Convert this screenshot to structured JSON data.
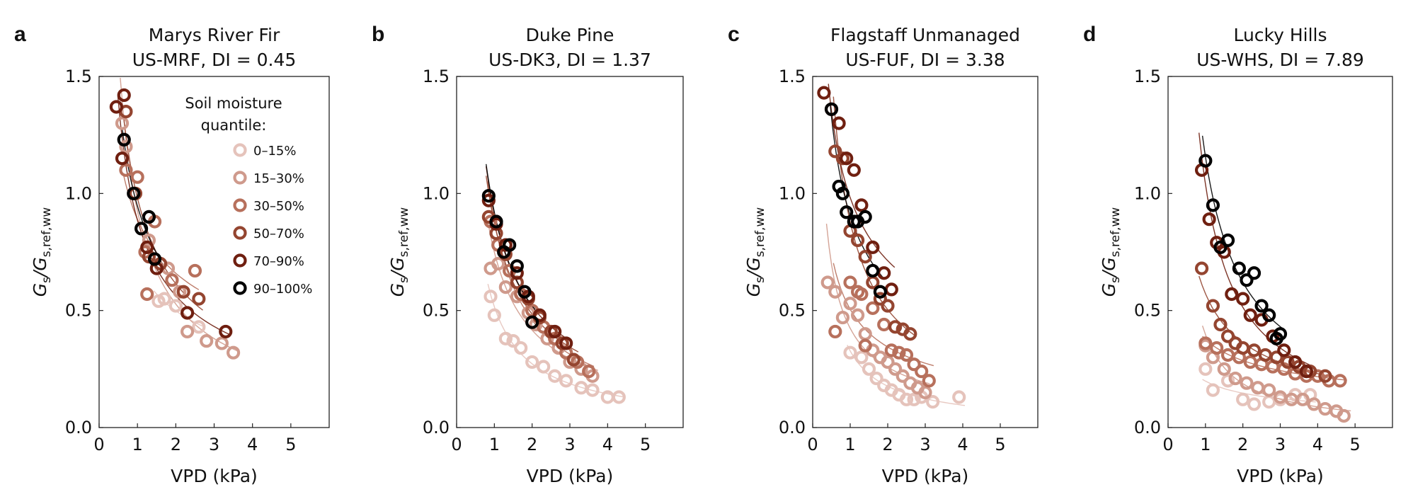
{
  "axis": {
    "xlabel": "VPD (kPa)",
    "ylabel_main": "G",
    "ylabel_main_sub": "s",
    "ylabel_denom": "/G",
    "ylabel_denom_sub": "s,ref,ww",
    "xlim": [
      0,
      6
    ],
    "ylim": [
      0,
      1.5
    ],
    "xticks": [
      "0",
      "1",
      "2",
      "3",
      "4",
      "5"
    ],
    "yticks": [
      "0.0",
      "0.5",
      "1.0",
      "1.5"
    ]
  },
  "legend": {
    "title_line1": "Soil moisture",
    "title_line2": "quantile:",
    "items": [
      "0–15%",
      "15–30%",
      "30–50%",
      "50–70%",
      "70–90%",
      "90–100%"
    ],
    "colors": [
      "#e5c3bb",
      "#cf9a8c",
      "#b7705c",
      "#944530",
      "#6f1f10",
      "#000000"
    ],
    "placement": "top-right of panel a"
  },
  "chart_data": [
    {
      "type": "scatter",
      "panel": "a",
      "title_line1": "Marys River Fir",
      "title_line2": "US-MRF, DI = 0.45",
      "xlabel": "VPD (kPa)",
      "ylim": [
        0,
        1.5
      ],
      "xlim": [
        0,
        6
      ],
      "series": [
        {
          "name": "0–15%",
          "x": [
            1.55,
            1.7,
            2.0,
            2.6
          ],
          "y": [
            0.54,
            0.55,
            0.52,
            0.43
          ]
        },
        {
          "name": "15–30%",
          "x": [
            0.6,
            0.7,
            1.3,
            1.8,
            2.1,
            2.3,
            2.8,
            3.2,
            3.5
          ],
          "y": [
            1.3,
            1.2,
            0.8,
            0.68,
            0.58,
            0.41,
            0.37,
            0.36,
            0.32
          ]
        },
        {
          "name": "30–50%",
          "x": [
            0.7,
            1.0,
            1.2,
            1.45,
            1.9,
            2.5,
            1.25
          ],
          "y": [
            1.1,
            1.07,
            0.75,
            0.88,
            0.63,
            0.67,
            0.57
          ]
        },
        {
          "name": "50–70%",
          "x": [
            0.7,
            0.95,
            1.3,
            1.6,
            2.2,
            2.6
          ],
          "y": [
            1.35,
            1.0,
            0.73,
            0.7,
            0.58,
            0.55
          ]
        },
        {
          "name": "70–90%",
          "x": [
            0.45,
            0.65,
            0.6,
            1.25,
            1.5,
            2.3,
            3.3
          ],
          "y": [
            1.37,
            1.42,
            1.15,
            0.77,
            0.68,
            0.49,
            0.41
          ]
        },
        {
          "name": "90–100%",
          "x": [
            0.65,
            0.9,
            1.1,
            1.3,
            1.45
          ],
          "y": [
            1.23,
            1.0,
            0.85,
            0.9,
            0.72
          ]
        }
      ]
    },
    {
      "type": "scatter",
      "panel": "b",
      "title_line1": "Duke Pine",
      "title_line2": "US-DK3, DI = 1.37",
      "xlabel": "VPD (kPa)",
      "ylim": [
        0,
        1.5
      ],
      "xlim": [
        0,
        6
      ],
      "series": [
        {
          "name": "0–15%",
          "x": [
            0.9,
            1.0,
            1.3,
            1.5,
            1.7,
            2.0,
            2.3,
            2.6,
            2.9,
            3.3,
            3.6,
            4.0,
            4.3
          ],
          "y": [
            0.56,
            0.48,
            0.38,
            0.37,
            0.34,
            0.28,
            0.26,
            0.22,
            0.2,
            0.17,
            0.16,
            0.13,
            0.13
          ]
        },
        {
          "name": "15–30%",
          "x": [
            0.9,
            1.1,
            1.3,
            1.6,
            1.9,
            2.1,
            2.4,
            2.7,
            3.0,
            3.3,
            3.6
          ],
          "y": [
            0.68,
            0.7,
            0.6,
            0.56,
            0.49,
            0.44,
            0.38,
            0.34,
            0.28,
            0.25,
            0.22
          ]
        },
        {
          "name": "30–50%",
          "x": [
            0.9,
            1.1,
            1.4,
            1.7,
            2.0,
            2.3,
            2.6,
            2.9,
            3.2,
            3.5
          ],
          "y": [
            0.88,
            0.78,
            0.67,
            0.57,
            0.5,
            0.43,
            0.38,
            0.32,
            0.28,
            0.24
          ]
        },
        {
          "name": "50–70%",
          "x": [
            0.85,
            1.05,
            1.3,
            1.6,
            1.9,
            2.2,
            2.5,
            2.8,
            3.1
          ],
          "y": [
            0.9,
            0.83,
            0.74,
            0.62,
            0.55,
            0.47,
            0.41,
            0.36,
            0.29
          ]
        },
        {
          "name": "70–90%",
          "x": [
            0.85,
            1.05,
            1.3,
            1.6,
            1.9,
            2.2,
            2.6,
            2.9
          ],
          "y": [
            0.97,
            0.87,
            0.78,
            0.66,
            0.56,
            0.48,
            0.41,
            0.36
          ]
        },
        {
          "name": "90–100%",
          "x": [
            0.85,
            1.05,
            1.25,
            1.4,
            1.6,
            1.8,
            2.0
          ],
          "y": [
            0.99,
            0.88,
            0.75,
            0.78,
            0.69,
            0.58,
            0.45
          ]
        }
      ]
    },
    {
      "type": "scatter",
      "panel": "c",
      "title_line1": "Flagstaff Unmanaged",
      "title_line2": "US-FUF, DI = 3.38",
      "xlabel": "VPD (kPa)",
      "ylim": [
        0,
        1.5
      ],
      "xlim": [
        0,
        6
      ],
      "series": [
        {
          "name": "0–15%",
          "x": [
            1.0,
            1.3,
            1.5,
            1.7,
            1.9,
            2.1,
            2.3,
            2.5,
            2.7,
            2.9,
            3.2,
            3.9
          ],
          "y": [
            0.32,
            0.3,
            0.25,
            0.21,
            0.18,
            0.16,
            0.14,
            0.12,
            0.12,
            0.13,
            0.11,
            0.13
          ]
        },
        {
          "name": "15–30%",
          "x": [
            0.4,
            0.6,
            0.8,
            1.0,
            1.2,
            1.4,
            1.6,
            1.8,
            2.0,
            2.2,
            2.4,
            2.6,
            2.8,
            3.0
          ],
          "y": [
            0.62,
            0.58,
            0.47,
            0.53,
            0.48,
            0.4,
            0.33,
            0.3,
            0.28,
            0.25,
            0.22,
            0.19,
            0.17,
            0.15
          ]
        },
        {
          "name": "30–50%",
          "x": [
            0.6,
            1.0,
            1.3,
            1.6,
            1.9,
            2.1,
            2.3,
            2.5,
            2.7,
            2.9,
            3.1,
            1.2,
            1.4
          ],
          "y": [
            0.41,
            0.62,
            0.57,
            0.51,
            0.44,
            0.33,
            0.32,
            0.31,
            0.27,
            0.24,
            0.2,
            0.58,
            0.35
          ]
        },
        {
          "name": "50–70%",
          "x": [
            0.6,
            0.8,
            1.0,
            1.2,
            1.4,
            1.6,
            1.8,
            2.0,
            2.2,
            2.4,
            2.6
          ],
          "y": [
            1.18,
            1.15,
            0.84,
            0.8,
            0.73,
            0.62,
            0.55,
            0.52,
            0.43,
            0.42,
            0.4
          ]
        },
        {
          "name": "70–90%",
          "x": [
            0.3,
            0.5,
            0.7,
            0.9,
            1.1,
            1.3,
            1.6,
            1.9,
            2.1
          ],
          "y": [
            1.43,
            1.36,
            1.3,
            1.15,
            1.1,
            0.95,
            0.77,
            0.66,
            0.59
          ]
        },
        {
          "name": "90–100%",
          "x": [
            0.5,
            0.7,
            0.9,
            1.1,
            1.2,
            1.4,
            1.6,
            1.8,
            0.8
          ],
          "y": [
            1.36,
            1.03,
            0.92,
            0.88,
            0.88,
            0.9,
            0.67,
            0.58,
            1.0
          ]
        }
      ]
    },
    {
      "type": "scatter",
      "panel": "d",
      "title_line1": "Lucky Hills",
      "title_line2": "US-WHS, DI = 7.89",
      "xlabel": "VPD (kPa)",
      "ylim": [
        0,
        1.5
      ],
      "xlim": [
        0,
        6
      ],
      "series": [
        {
          "name": "0–15%",
          "x": [
            1.0,
            1.2,
            1.6,
            2.0,
            2.3,
            2.7,
            3.0,
            3.4,
            3.8
          ],
          "y": [
            0.25,
            0.16,
            0.2,
            0.12,
            0.1,
            0.11,
            0.12,
            0.14,
            0.14
          ]
        },
        {
          "name": "15–30%",
          "x": [
            1.0,
            1.2,
            1.5,
            1.8,
            2.1,
            2.4,
            2.7,
            3.0,
            3.3,
            3.6,
            3.9,
            4.2,
            4.5,
            4.7
          ],
          "y": [
            0.35,
            0.3,
            0.25,
            0.21,
            0.19,
            0.17,
            0.16,
            0.13,
            0.12,
            0.12,
            0.1,
            0.08,
            0.07,
            0.05
          ]
        },
        {
          "name": "30–50%",
          "x": [
            1.0,
            1.3,
            1.6,
            1.9,
            2.2,
            2.5,
            2.8,
            3.1,
            3.4,
            3.7,
            4.0,
            4.3,
            4.6
          ],
          "y": [
            0.36,
            0.34,
            0.31,
            0.3,
            0.28,
            0.27,
            0.26,
            0.25,
            0.23,
            0.22,
            0.22,
            0.2,
            0.2
          ]
        },
        {
          "name": "50–70%",
          "x": [
            0.9,
            1.2,
            1.4,
            1.6,
            1.8,
            2.0,
            2.3,
            2.6,
            2.9,
            3.2,
            3.5,
            3.8,
            4.2
          ],
          "y": [
            0.68,
            0.52,
            0.44,
            0.39,
            0.36,
            0.34,
            0.33,
            0.31,
            0.3,
            0.28,
            0.26,
            0.24,
            0.22
          ]
        },
        {
          "name": "70–90%",
          "x": [
            0.9,
            1.1,
            1.3,
            1.5,
            1.7,
            2.0,
            2.2,
            2.5,
            2.8,
            3.1,
            3.4,
            3.7
          ],
          "y": [
            1.1,
            0.89,
            0.79,
            0.75,
            0.57,
            0.55,
            0.48,
            0.46,
            0.39,
            0.33,
            0.28,
            0.24
          ]
        },
        {
          "name": "90–100%",
          "x": [
            1.0,
            1.2,
            1.4,
            1.6,
            1.9,
            2.1,
            2.3,
            2.5,
            2.7,
            2.9,
            3.0
          ],
          "y": [
            1.14,
            0.95,
            0.77,
            0.8,
            0.68,
            0.63,
            0.66,
            0.52,
            0.48,
            0.38,
            0.4
          ]
        }
      ]
    }
  ]
}
